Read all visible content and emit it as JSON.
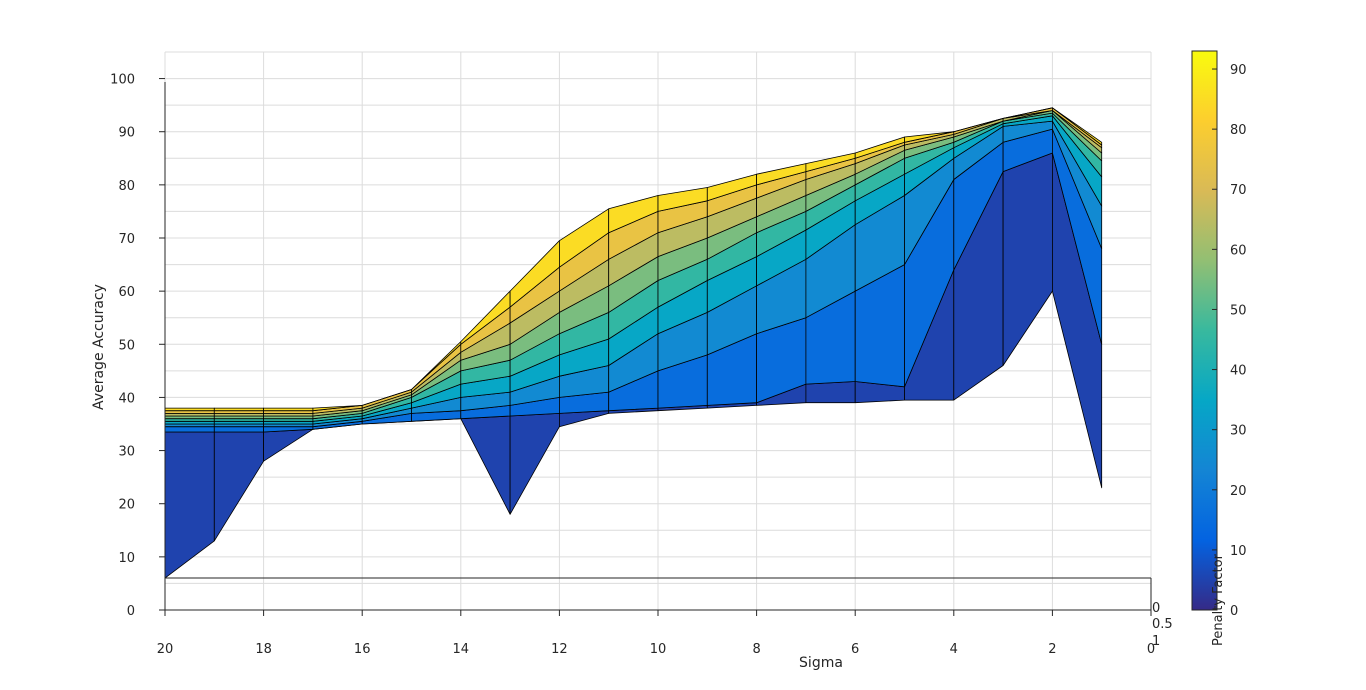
{
  "chart_data": {
    "type": "surface",
    "xlabel": "Sigma",
    "ylabel": "Average Accuracy",
    "zlabel": "",
    "colorbar_label": "Penalty Factor",
    "x_ticks": [
      20,
      18,
      16,
      14,
      12,
      10,
      8,
      6,
      4,
      2,
      0
    ],
    "y_ticks": [
      0,
      10,
      20,
      30,
      40,
      50,
      60,
      70,
      80,
      90,
      100
    ],
    "depth_ticks": [
      "0",
      "0.5",
      "1"
    ],
    "colorbar_ticks": [
      0,
      10,
      20,
      30,
      40,
      50,
      60,
      70,
      80,
      90
    ],
    "xlim": [
      20,
      0
    ],
    "ylim": [
      0,
      105
    ],
    "colorbar_lim": [
      0,
      93
    ],
    "grid": true,
    "colormap": [
      "#352a87",
      "#0363e1",
      "#1485d4",
      "#06a7c6",
      "#38b99e",
      "#92bf73",
      "#d9ba56",
      "#fcce2e",
      "#f9fb0e"
    ],
    "sigma": [
      20,
      19,
      18,
      17,
      16,
      15,
      14,
      13,
      12,
      11,
      10,
      9,
      8,
      7,
      6,
      5,
      4,
      3,
      2,
      1
    ],
    "penalty_factor": [
      0,
      10,
      20,
      30,
      40,
      50,
      60,
      70,
      80,
      90
    ],
    "series": [
      {
        "penalty": 0,
        "values": [
          6,
          13,
          28,
          34,
          35,
          35.5,
          36,
          18,
          34.5,
          37,
          37.5,
          38,
          38.5,
          39,
          39,
          39.5,
          39.5,
          46,
          60,
          23
        ]
      },
      {
        "penalty": 10,
        "values": [
          33.5,
          33.5,
          33.5,
          34,
          35,
          35.5,
          36,
          36.5,
          37,
          37.5,
          38,
          38.5,
          39,
          42.5,
          43,
          42,
          64,
          82.5,
          86,
          50
        ]
      },
      {
        "penalty": 20,
        "values": [
          34.5,
          34.5,
          34.5,
          34.5,
          35.5,
          37,
          37.5,
          38.5,
          40,
          41,
          45,
          48,
          52,
          55,
          60,
          65,
          81,
          88,
          90.5,
          68
        ]
      },
      {
        "penalty": 30,
        "values": [
          35,
          35,
          35,
          35,
          36,
          38,
          40,
          41,
          44,
          46,
          52,
          56,
          61,
          66,
          72.5,
          78,
          85,
          91,
          92,
          76
        ]
      },
      {
        "penalty": 40,
        "values": [
          35.5,
          35.5,
          35.5,
          35.5,
          36.5,
          39,
          42.5,
          44,
          48,
          51,
          57,
          62,
          66.5,
          71.5,
          77,
          82,
          87,
          91.5,
          93,
          81.5
        ]
      },
      {
        "penalty": 50,
        "values": [
          36,
          36,
          36,
          36,
          37,
          40,
          45,
          47,
          52,
          56,
          62,
          66,
          71,
          75,
          80,
          85,
          88,
          92,
          93.5,
          84.5
        ]
      },
      {
        "penalty": 60,
        "values": [
          36.5,
          36.5,
          36.5,
          36.5,
          37.5,
          40.5,
          47,
          50,
          56,
          61,
          66.5,
          70,
          74,
          78,
          82,
          86.5,
          89,
          92,
          94,
          86
        ]
      },
      {
        "penalty": 70,
        "values": [
          37,
          37,
          37,
          37,
          38,
          41,
          48.5,
          54,
          60,
          66,
          71,
          74,
          77.5,
          81,
          84,
          87.5,
          89.5,
          92.5,
          94,
          87
        ]
      },
      {
        "penalty": 80,
        "values": [
          37.5,
          37.5,
          37.5,
          37.5,
          38.5,
          41.5,
          50,
          57,
          64.5,
          71,
          75,
          77,
          80,
          82.5,
          85,
          88,
          90,
          92.5,
          94.5,
          87.5
        ]
      },
      {
        "penalty": 90,
        "values": [
          38,
          38,
          38,
          38,
          38.5,
          41.5,
          50.5,
          60,
          69.5,
          75.5,
          78,
          79.5,
          82,
          84,
          86,
          89,
          90,
          92.5,
          94.5,
          88
        ]
      }
    ]
  }
}
